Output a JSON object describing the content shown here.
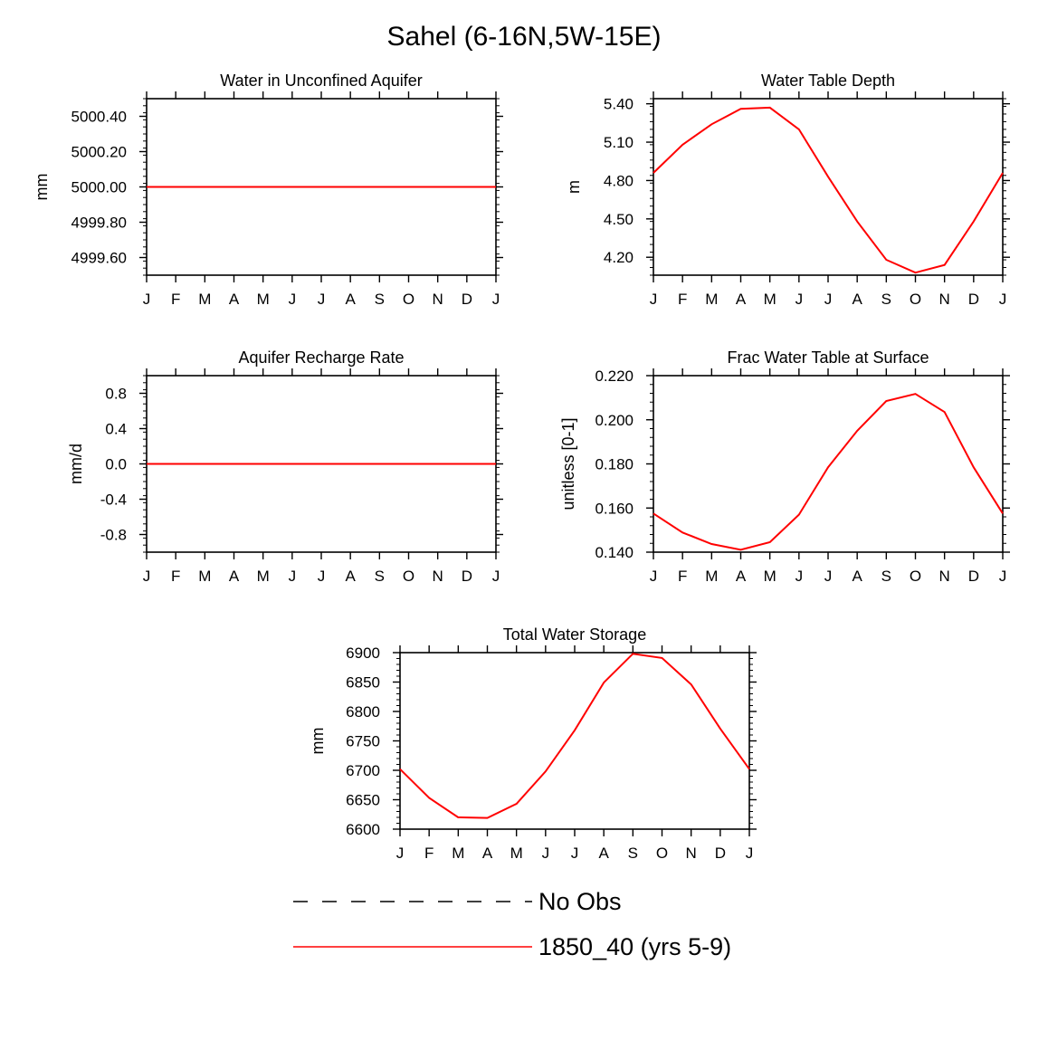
{
  "figure_title": "Sahel (6-16N,5W-15E)",
  "colors": {
    "model": "#ff0000",
    "obs": "#000000",
    "axis": "#000000"
  },
  "legend": {
    "entries": [
      {
        "label": "No Obs",
        "style": "dashed",
        "color": "#000000"
      },
      {
        "label": "1850_40 (yrs 5-9)",
        "style": "solid",
        "color": "#ff0000"
      }
    ]
  },
  "chart_data": [
    {
      "type": "line",
      "title": "Water in Unconfined Aquifer",
      "ylabel": "mm",
      "ylim": [
        4999.5,
        5000.5
      ],
      "yticks": [
        4999.6,
        4999.8,
        5000.0,
        5000.2,
        5000.4
      ],
      "yticklabels": [
        "4999.60",
        "4999.80",
        "5000.00",
        "5000.20",
        "5000.40"
      ],
      "x": [
        "J",
        "F",
        "M",
        "A",
        "M",
        "J",
        "J",
        "A",
        "S",
        "O",
        "N",
        "D",
        "J"
      ],
      "series": [
        {
          "values": [
            5000.0,
            5000.0,
            5000.0,
            5000.0,
            5000.0,
            5000.0,
            5000.0,
            5000.0,
            5000.0,
            5000.0,
            5000.0,
            5000.0,
            5000.0
          ]
        }
      ]
    },
    {
      "type": "line",
      "title": "Water Table Depth",
      "ylabel": "m",
      "ylim": [
        4.06,
        5.44
      ],
      "yticks": [
        4.2,
        4.5,
        4.8,
        5.1,
        5.4
      ],
      "yticklabels": [
        "4.20",
        "4.50",
        "4.80",
        "5.10",
        "5.40"
      ],
      "x": [
        "J",
        "F",
        "M",
        "A",
        "M",
        "J",
        "J",
        "A",
        "S",
        "O",
        "N",
        "D",
        "J"
      ],
      "series": [
        {
          "values": [
            4.86,
            5.08,
            5.24,
            5.36,
            5.37,
            5.2,
            4.83,
            4.48,
            4.18,
            4.08,
            4.14,
            4.48,
            4.86
          ]
        }
      ]
    },
    {
      "type": "line",
      "title": "Aquifer Recharge Rate",
      "ylabel": "mm/d",
      "ylim": [
        -1.0,
        1.0
      ],
      "yticks": [
        -0.8,
        -0.4,
        0.0,
        0.4,
        0.8
      ],
      "yticklabels": [
        "-0.8",
        "-0.4",
        "0.0",
        "0.4",
        "0.8"
      ],
      "x": [
        "J",
        "F",
        "M",
        "A",
        "M",
        "J",
        "J",
        "A",
        "S",
        "O",
        "N",
        "D",
        "J"
      ],
      "series": [
        {
          "values": [
            0,
            0,
            0,
            0,
            0,
            0,
            0,
            0,
            0,
            0,
            0,
            0,
            0
          ]
        }
      ]
    },
    {
      "type": "line",
      "title": "Frac Water Table at Surface",
      "ylabel": "unitless [0-1]",
      "ylim": [
        0.14,
        0.22
      ],
      "yticks": [
        0.14,
        0.16,
        0.18,
        0.2,
        0.22
      ],
      "yticklabels": [
        "0.140",
        "0.160",
        "0.180",
        "0.200",
        "0.220"
      ],
      "x": [
        "J",
        "F",
        "M",
        "A",
        "M",
        "J",
        "J",
        "A",
        "S",
        "O",
        "N",
        "D",
        "J"
      ],
      "series": [
        {
          "values": [
            0.1575,
            0.1489,
            0.1437,
            0.1411,
            0.1445,
            0.157,
            0.1785,
            0.195,
            0.2085,
            0.2117,
            0.2035,
            0.1785,
            0.1575
          ]
        }
      ]
    },
    {
      "type": "line",
      "title": "Total Water Storage",
      "ylabel": "mm",
      "ylim": [
        6600,
        6900
      ],
      "yticks": [
        6600,
        6650,
        6700,
        6750,
        6800,
        6850,
        6900
      ],
      "yticklabels": [
        "6600",
        "6650",
        "6700",
        "6750",
        "6800",
        "6850",
        "6900"
      ],
      "x": [
        "J",
        "F",
        "M",
        "A",
        "M",
        "J",
        "J",
        "A",
        "S",
        "O",
        "N",
        "D",
        "J"
      ],
      "series": [
        {
          "values": [
            6702,
            6653,
            6620,
            6619,
            6643,
            6698,
            6768,
            6849,
            6898,
            6891,
            6846,
            6771,
            6702
          ]
        }
      ]
    }
  ]
}
